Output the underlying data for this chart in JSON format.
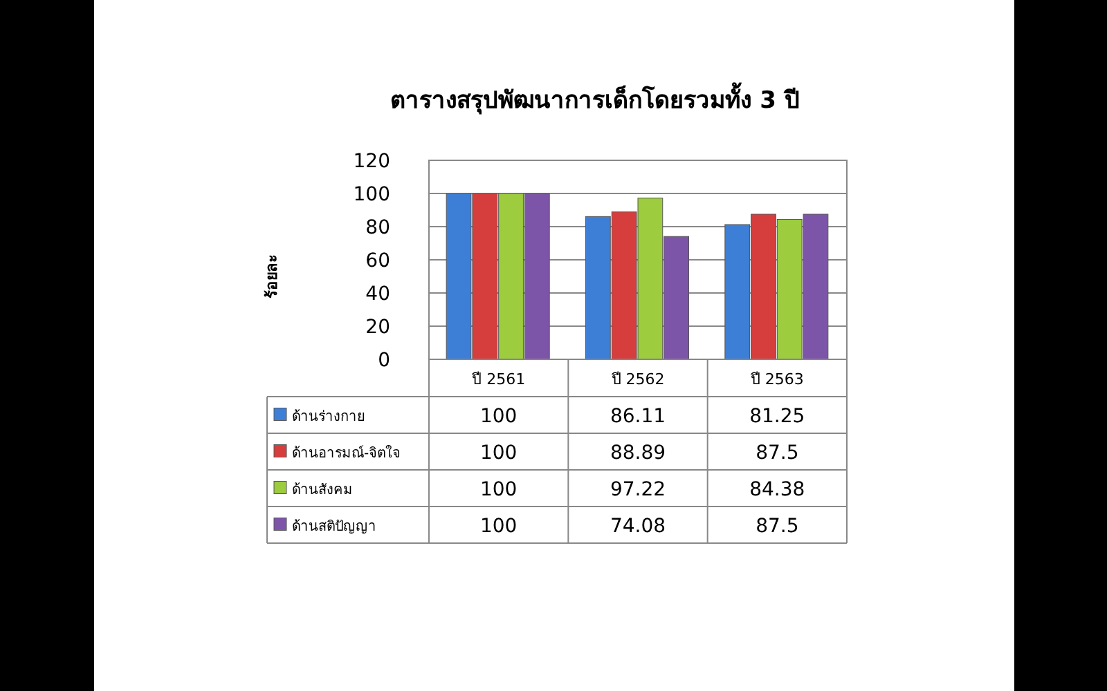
{
  "chart_data": {
    "type": "bar",
    "title": "ตารางสรุปพัฒนาการเด็กโดยรวมทั้ง 3 ปี",
    "ylabel": "ร้อยละ",
    "categories": [
      "ปี 2561",
      "ปี 2562",
      "ปี 2563"
    ],
    "series": [
      {
        "name": "ด้านร่างกาย",
        "color": "#3d7fd6",
        "values": [
          100,
          86.11,
          81.25
        ]
      },
      {
        "name": "ด้านอารมณ์-จิตใจ",
        "color": "#d63d3d",
        "values": [
          100,
          88.89,
          87.5
        ]
      },
      {
        "name": "ด้านสังคม",
        "color": "#9dcc3f",
        "values": [
          100,
          97.22,
          84.38
        ]
      },
      {
        "name": "ด้านสติปัญญา",
        "color": "#7d55a8",
        "values": [
          100,
          74.08,
          87.5
        ]
      }
    ],
    "ylim": [
      0,
      120
    ],
    "yticks": [
      0,
      20,
      40,
      60,
      80,
      100,
      120
    ],
    "grid": "y",
    "legend": "bottom",
    "data_labels": true
  }
}
